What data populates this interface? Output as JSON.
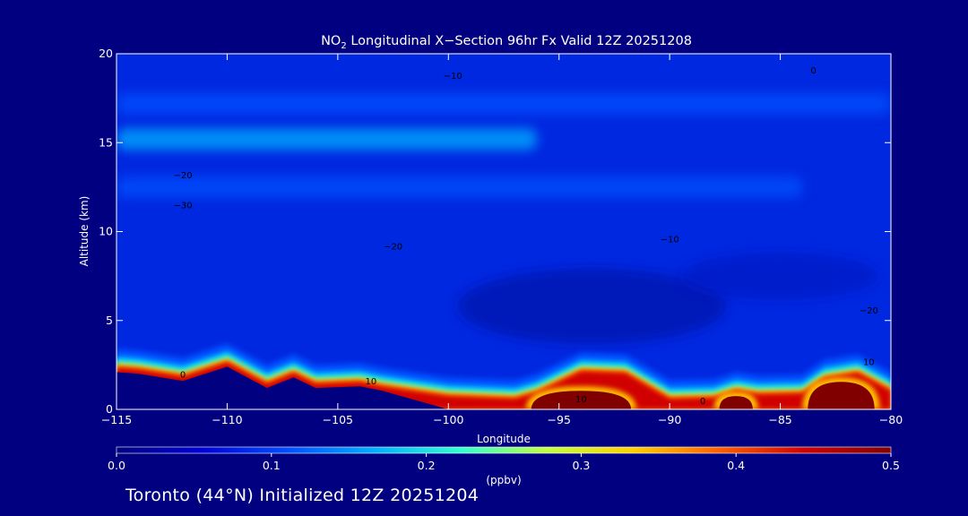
{
  "chart_data": {
    "type": "heatmap",
    "title": {
      "prefix": "NO",
      "subscript": "2",
      "rest": " Longitudinal X−Section 96hr  Fx Valid 12Z 20251208"
    },
    "xlabel": "Longitude",
    "ylabel": "Altitude (km)",
    "xlim": [
      -115,
      -80
    ],
    "ylim": [
      0,
      20
    ],
    "x_ticks": [
      -115,
      -110,
      -105,
      -100,
      -95,
      -90,
      -85,
      -80
    ],
    "x_tick_labels": [
      "−115",
      "−110",
      "−105",
      "−100",
      "−95",
      "−90",
      "−85",
      "−80"
    ],
    "y_ticks": [
      0,
      5,
      10,
      15,
      20
    ],
    "y_tick_labels": [
      "0",
      "5",
      "10",
      "15",
      "20"
    ],
    "colorbar": {
      "min": 0.0,
      "max": 0.5,
      "ticks": [
        0.0,
        0.1,
        0.2,
        0.3,
        0.4,
        0.5
      ],
      "tick_labels": [
        "0.0",
        "0.1",
        "0.2",
        "0.3",
        "0.4",
        "0.5"
      ],
      "units": "(ppbv)",
      "colors": [
        "#000080",
        "#0000d8",
        "#0050ff",
        "#00b0ff",
        "#30ffd0",
        "#c0ff40",
        "#ffd000",
        "#ff6000",
        "#d00000",
        "#800000"
      ]
    },
    "surface_altitude_km": [
      [
        -115,
        2.3
      ],
      [
        -114,
        2.2
      ],
      [
        -112,
        1.8
      ],
      [
        -110,
        2.6
      ],
      [
        -108.2,
        1.4
      ],
      [
        -107,
        2.0
      ],
      [
        -106,
        1.4
      ],
      [
        -104,
        1.5
      ],
      [
        -103,
        1.25
      ],
      [
        -100,
        0.7
      ],
      [
        -97,
        0.55
      ],
      [
        -96,
        0.9
      ],
      [
        -94,
        2.1
      ],
      [
        -92,
        2.0
      ],
      [
        -90,
        0.55
      ],
      [
        -88,
        0.6
      ],
      [
        -87,
        1.0
      ],
      [
        -86,
        0.8
      ],
      [
        -84,
        0.85
      ],
      [
        -83,
        1.7
      ],
      [
        -81.5,
        2.0
      ],
      [
        -80,
        1.0
      ]
    ],
    "high_concentration_cores": [
      {
        "lon_range": [
          -96.5,
          -91.5
        ],
        "alt_top_km": 1.3,
        "value_ppbv": 0.5
      },
      {
        "lon_range": [
          -88,
          -86
        ],
        "alt_top_km": 1.0,
        "value_ppbv": 0.5
      },
      {
        "lon_range": [
          -84,
          -80.5
        ],
        "alt_top_km": 1.8,
        "value_ppbv": 0.5
      }
    ],
    "upper_layers": [
      {
        "alt_km": 15.2,
        "lon_range": [
          -115,
          -96
        ],
        "value_ppbv": 0.12
      },
      {
        "alt_km": 12.5,
        "lon_range": [
          -115,
          -84
        ],
        "value_ppbv": 0.06
      },
      {
        "alt_km": 17.2,
        "lon_range": [
          -115,
          -80
        ],
        "value_ppbv": 0.04
      }
    ],
    "contour_labels": [
      {
        "lon": -112.0,
        "alt_km": 13.0,
        "text": "−20"
      },
      {
        "lon": -112.0,
        "alt_km": 11.3,
        "text": "−30"
      },
      {
        "lon": -102.5,
        "alt_km": 9.0,
        "text": "−20"
      },
      {
        "lon": -99.8,
        "alt_km": 18.6,
        "text": "−10"
      },
      {
        "lon": -90.0,
        "alt_km": 9.4,
        "text": "−10"
      },
      {
        "lon": -83.5,
        "alt_km": 18.9,
        "text": "0"
      },
      {
        "lon": -81.0,
        "alt_km": 5.4,
        "text": "−20"
      },
      {
        "lon": -81.0,
        "alt_km": 2.5,
        "text": "10"
      },
      {
        "lon": -112.0,
        "alt_km": 1.8,
        "text": "0"
      },
      {
        "lon": -103.5,
        "alt_km": 1.4,
        "text": "10"
      },
      {
        "lon": -94.0,
        "alt_km": 0.4,
        "text": "10"
      },
      {
        "lon": -88.5,
        "alt_km": 0.3,
        "text": "0"
      }
    ]
  },
  "footer": {
    "text": "Toronto (44°N) Initialized 12Z 20251204"
  }
}
